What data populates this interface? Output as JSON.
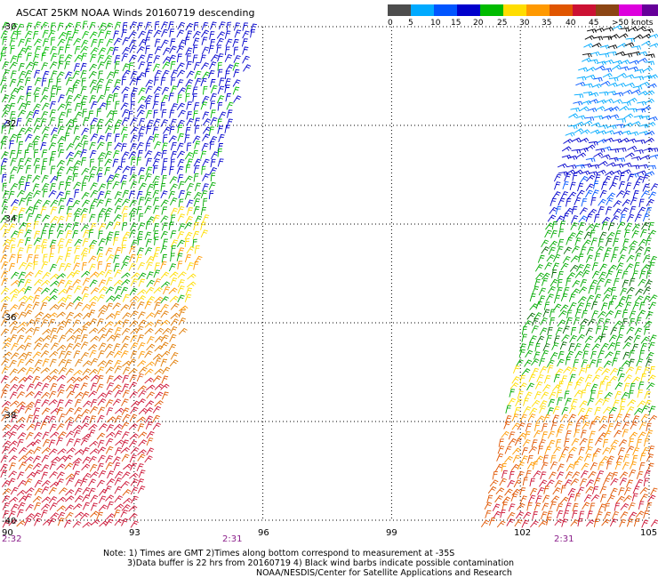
{
  "title": "ASCAT 25KM NOAA Winds 20160719 descending",
  "colorbar": {
    "segments": [
      "#4d4d4d",
      "#00aaff",
      "#0055ff",
      "#0000cc",
      "#00bb00",
      "#ffdd00",
      "#ff9900",
      "#e05500",
      "#cc1133",
      "#8b4513",
      "#dd00dd",
      "#660099"
    ],
    "labels": [
      "0",
      "5",
      "10",
      "15",
      "20",
      "25",
      "30",
      "35",
      "40",
      "45",
      ">50 knots"
    ]
  },
  "lat_labels": [
    "-30",
    "-32",
    "-34",
    "-36",
    "-38",
    "-40"
  ],
  "lon_labels": [
    "90",
    "93",
    "96",
    "99",
    "102",
    "105"
  ],
  "time_labels": [
    "2:32",
    "2:31",
    "2:31"
  ],
  "notes": {
    "line1": "Note: 1) Times are GMT 2)Times along bottom correspond to measurement at -35S",
    "line2": "3)Data buffer is 22 hrs from 20160719 4) Black wind barbs indicate possible contamination",
    "line3": "NOAA/NESDIS/Center for Satellite Applications and Research"
  },
  "swaths": [
    {
      "name": "west-swath",
      "lon_range": [
        90,
        96.2
      ],
      "lat_range": [
        -30,
        -40
      ]
    },
    {
      "name": "east-swath",
      "lon_range": [
        101.3,
        105
      ],
      "lat_range": [
        -30,
        -40
      ]
    }
  ]
}
